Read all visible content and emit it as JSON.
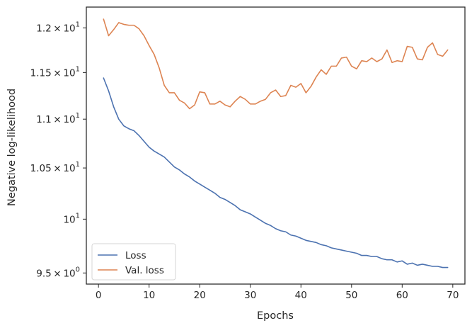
{
  "chart_data": {
    "type": "line",
    "xlabel": "Epochs",
    "ylabel": "Negative log-likelihood",
    "yscale": "log",
    "xlim": [
      -2.4,
      72.4
    ],
    "ylim": [
      9.4,
      12.24
    ],
    "grid": false,
    "legend_position": "lower-left",
    "x_ticks": [
      0,
      10,
      20,
      30,
      40,
      50,
      60,
      70
    ],
    "x_tick_labels": [
      "0",
      "10",
      "20",
      "30",
      "40",
      "50",
      "60",
      "70"
    ],
    "y_ticks": [
      {
        "value": 12.0,
        "mant": "1.2",
        "exp": "1",
        "plain": ""
      },
      {
        "value": 11.5,
        "mant": "1.15",
        "exp": "1",
        "plain": ""
      },
      {
        "value": 11.0,
        "mant": "1.1",
        "exp": "1",
        "plain": ""
      },
      {
        "value": 10.5,
        "mant": "1.05",
        "exp": "1",
        "plain": ""
      },
      {
        "value": 10.0,
        "mant": "",
        "exp": "1",
        "plain": "10"
      },
      {
        "value": 9.5,
        "mant": "9.5",
        "exp": "0",
        "plain": ""
      }
    ],
    "x": [
      1,
      2,
      3,
      4,
      5,
      6,
      7,
      8,
      9,
      10,
      11,
      12,
      13,
      14,
      15,
      16,
      17,
      18,
      19,
      20,
      21,
      22,
      23,
      24,
      25,
      26,
      27,
      28,
      29,
      30,
      31,
      32,
      33,
      34,
      35,
      36,
      37,
      38,
      39,
      40,
      41,
      42,
      43,
      44,
      45,
      46,
      47,
      48,
      49,
      50,
      51,
      52,
      53,
      54,
      55,
      56,
      57,
      58,
      59,
      60,
      61,
      62,
      63,
      64,
      65,
      66,
      67,
      68,
      69
    ],
    "series": [
      {
        "name": "Loss",
        "color": "#4c72b0",
        "values": [
          11.44,
          11.3,
          11.13,
          11.0,
          10.93,
          10.9,
          10.88,
          10.83,
          10.77,
          10.71,
          10.67,
          10.64,
          10.61,
          10.56,
          10.51,
          10.48,
          10.44,
          10.41,
          10.37,
          10.34,
          10.31,
          10.28,
          10.25,
          10.21,
          10.19,
          10.16,
          10.13,
          10.09,
          10.07,
          10.05,
          10.02,
          9.99,
          9.96,
          9.94,
          9.91,
          9.89,
          9.88,
          9.85,
          9.84,
          9.82,
          9.8,
          9.79,
          9.78,
          9.76,
          9.75,
          9.73,
          9.72,
          9.71,
          9.7,
          9.69,
          9.68,
          9.66,
          9.66,
          9.65,
          9.65,
          9.63,
          9.62,
          9.62,
          9.6,
          9.61,
          9.58,
          9.59,
          9.57,
          9.58,
          9.57,
          9.56,
          9.56,
          9.55,
          9.55
        ]
      },
      {
        "name": "Val. loss",
        "color": "#dd8452",
        "values": [
          12.1,
          11.91,
          11.98,
          12.06,
          12.04,
          12.03,
          12.03,
          11.99,
          11.91,
          11.8,
          11.7,
          11.55,
          11.36,
          11.28,
          11.28,
          11.2,
          11.17,
          11.11,
          11.15,
          11.29,
          11.28,
          11.16,
          11.16,
          11.19,
          11.15,
          11.13,
          11.19,
          11.24,
          11.21,
          11.16,
          11.16,
          11.19,
          11.21,
          11.28,
          11.31,
          11.24,
          11.25,
          11.36,
          11.34,
          11.38,
          11.28,
          11.35,
          11.45,
          11.53,
          11.48,
          11.57,
          11.57,
          11.66,
          11.67,
          11.57,
          11.54,
          11.63,
          11.62,
          11.66,
          11.62,
          11.65,
          11.75,
          11.61,
          11.63,
          11.62,
          11.79,
          11.78,
          11.65,
          11.64,
          11.78,
          11.83,
          11.7,
          11.68,
          11.75
        ]
      }
    ]
  }
}
